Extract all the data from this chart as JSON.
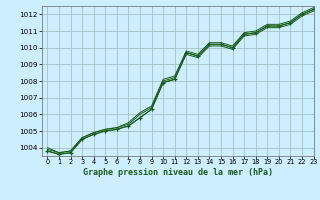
{
  "title": "Graphe pression niveau de la mer (hPa)",
  "background_color": "#cceeff",
  "grid_color": "#99bbbb",
  "line_color": "#1a5c1a",
  "xlim": [
    -0.5,
    23
  ],
  "ylim": [
    1003.5,
    1012.5
  ],
  "xticks": [
    0,
    1,
    2,
    3,
    4,
    5,
    6,
    7,
    8,
    9,
    10,
    11,
    12,
    13,
    14,
    15,
    16,
    17,
    18,
    19,
    20,
    21,
    22,
    23
  ],
  "yticks": [
    1004,
    1005,
    1006,
    1007,
    1008,
    1009,
    1010,
    1011,
    1012
  ],
  "series": [
    [
      1003.8,
      1003.6,
      1003.7,
      1004.5,
      1004.8,
      1005.0,
      1005.1,
      1005.3,
      1005.8,
      1006.3,
      1007.9,
      1008.1,
      1009.7,
      1009.5,
      1010.2,
      1010.2,
      1010.0,
      1010.8,
      1010.9,
      1011.3,
      1011.3,
      1011.5,
      1012.0,
      1012.3
    ],
    [
      1003.8,
      1003.6,
      1003.7,
      1004.5,
      1004.8,
      1005.0,
      1005.1,
      1005.3,
      1005.8,
      1006.3,
      1007.9,
      1008.1,
      1009.6,
      1009.4,
      1010.1,
      1010.1,
      1009.9,
      1010.7,
      1010.8,
      1011.2,
      1011.2,
      1011.4,
      1011.9,
      1012.2
    ],
    [
      1003.9,
      1003.7,
      1003.8,
      1004.6,
      1004.9,
      1005.1,
      1005.2,
      1005.4,
      1006.0,
      1006.4,
      1008.0,
      1008.2,
      1009.7,
      1009.5,
      1010.2,
      1010.2,
      1010.0,
      1010.8,
      1010.9,
      1011.3,
      1011.3,
      1011.5,
      1012.0,
      1012.3
    ],
    [
      1004.0,
      1003.7,
      1003.8,
      1004.6,
      1004.9,
      1005.1,
      1005.2,
      1005.5,
      1006.1,
      1006.5,
      1008.1,
      1008.3,
      1009.8,
      1009.6,
      1010.3,
      1010.3,
      1010.1,
      1010.9,
      1011.0,
      1011.4,
      1011.4,
      1011.6,
      1012.1,
      1012.4
    ]
  ],
  "marker_series": 0
}
